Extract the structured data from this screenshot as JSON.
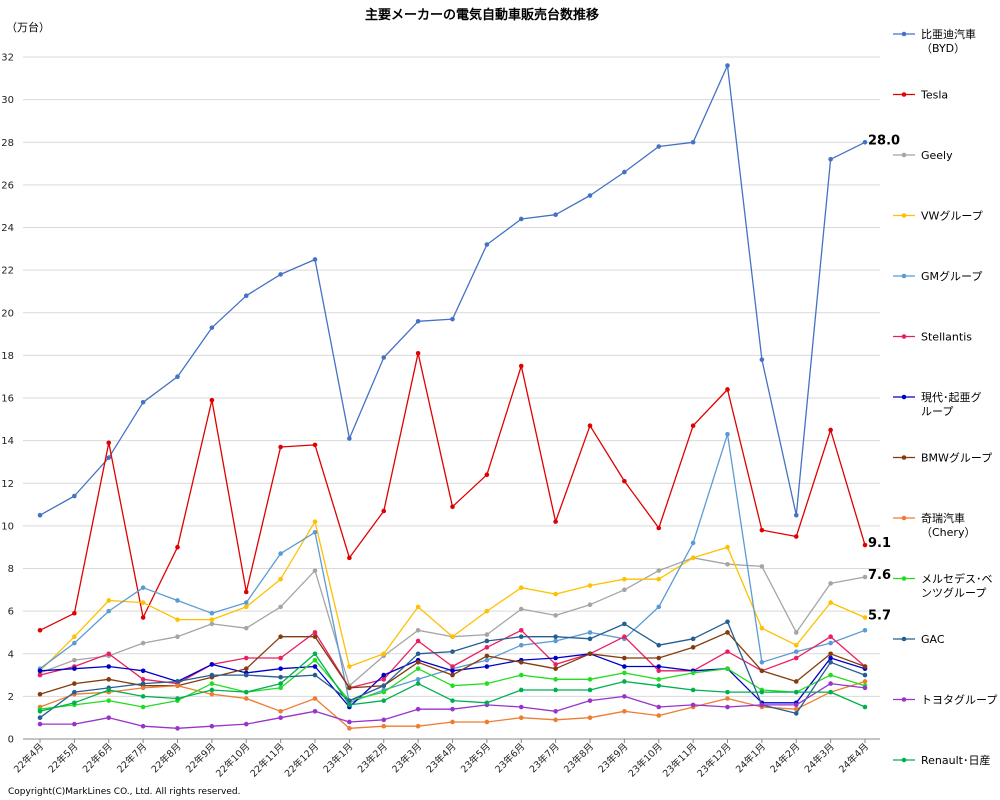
{
  "chart_data": {
    "type": "line",
    "title": "主要メーカーの電気自動車販売台数推移",
    "unit": "（万台）",
    "ylim": [
      0,
      32
    ],
    "yticks": [
      0,
      2,
      4,
      6,
      8,
      10,
      12,
      14,
      16,
      18,
      20,
      22,
      24,
      26,
      28,
      30,
      32
    ],
    "grid": true,
    "legend_position": "right",
    "categories": [
      "22年4月",
      "22年5月",
      "22年6月",
      "22年7月",
      "22年8月",
      "22年9月",
      "22年10月",
      "22年11月",
      "22年12月",
      "23年1月",
      "23年2月",
      "23年3月",
      "23年4月",
      "23年5月",
      "23年6月",
      "23年7月",
      "23年8月",
      "23年9月",
      "23年10月",
      "23年11月",
      "23年12月",
      "24年1月",
      "24年2月",
      "24年3月",
      "24年4月"
    ],
    "series": [
      {
        "name": "比亜迪汽車（BYD）",
        "legend_lines": [
          "比亜迪汽車",
          "（BYD）"
        ],
        "color": "#4472c4",
        "values": [
          10.5,
          11.4,
          13.2,
          15.8,
          17.0,
          19.3,
          20.8,
          21.8,
          22.5,
          14.1,
          17.9,
          19.6,
          19.7,
          23.2,
          24.4,
          24.6,
          25.5,
          26.6,
          27.8,
          28.0,
          31.6,
          17.8,
          10.5,
          27.2,
          28.0
        ]
      },
      {
        "name": "Tesla",
        "legend_lines": [
          "Tesla"
        ],
        "color": "#e00000",
        "values": [
          5.1,
          5.9,
          13.9,
          5.7,
          9.0,
          15.9,
          6.9,
          13.7,
          13.8,
          8.5,
          10.7,
          18.1,
          10.9,
          12.4,
          17.5,
          10.2,
          14.7,
          12.1,
          9.9,
          14.7,
          16.4,
          9.8,
          9.5,
          14.5,
          9.1
        ]
      },
      {
        "name": "Geely",
        "legend_lines": [
          "Geely"
        ],
        "color": "#a5a5a5",
        "values": [
          3.1,
          3.7,
          3.9,
          4.5,
          4.8,
          5.4,
          5.2,
          6.2,
          7.9,
          2.5,
          3.9,
          5.1,
          4.8,
          4.9,
          6.1,
          5.8,
          6.3,
          7.0,
          7.9,
          8.5,
          8.2,
          8.1,
          5.0,
          7.3,
          7.6
        ]
      },
      {
        "name": "VWグループ",
        "legend_lines": [
          "VWグループ"
        ],
        "color": "#ffc000",
        "values": [
          3.2,
          4.8,
          6.5,
          6.4,
          5.6,
          5.6,
          6.2,
          7.5,
          10.2,
          3.4,
          4.0,
          6.2,
          4.8,
          6.0,
          7.1,
          6.8,
          7.2,
          7.5,
          7.5,
          8.5,
          9.0,
          5.2,
          4.4,
          6.4,
          5.7
        ]
      },
      {
        "name": "GMグループ",
        "legend_lines": [
          "GMグループ"
        ],
        "color": "#5b9bd5",
        "values": [
          3.3,
          4.5,
          6.0,
          7.1,
          6.5,
          5.9,
          6.4,
          8.7,
          9.7,
          1.7,
          2.3,
          2.8,
          3.3,
          3.7,
          4.4,
          4.6,
          5.0,
          4.7,
          6.2,
          9.2,
          14.3,
          3.6,
          4.1,
          4.5,
          5.1
        ]
      },
      {
        "name": "Stellantis",
        "legend_lines": [
          "Stellantis"
        ],
        "color": "#e91e63",
        "values": [
          3.0,
          3.4,
          4.0,
          2.8,
          2.6,
          3.5,
          3.8,
          3.8,
          5.0,
          2.4,
          2.8,
          4.6,
          3.4,
          4.3,
          5.1,
          3.5,
          4.0,
          4.8,
          3.2,
          3.2,
          4.1,
          3.2,
          3.8,
          4.8,
          3.4
        ]
      },
      {
        "name": "現代･起亜グループ",
        "legend_lines": [
          "現代･起亜グ",
          "ループ"
        ],
        "color": "#0000cc",
        "values": [
          3.2,
          3.3,
          3.4,
          3.2,
          2.7,
          3.5,
          3.1,
          3.3,
          3.4,
          1.5,
          3.0,
          3.7,
          3.2,
          3.4,
          3.7,
          3.8,
          4.0,
          3.4,
          3.4,
          3.2,
          3.3,
          1.7,
          1.7,
          3.8,
          3.3
        ]
      },
      {
        "name": "BMWグループ",
        "legend_lines": [
          "BMWグループ"
        ],
        "color": "#843c0c",
        "values": [
          2.1,
          2.6,
          2.8,
          2.5,
          2.5,
          2.9,
          3.3,
          4.8,
          4.8,
          2.4,
          2.5,
          3.6,
          3.0,
          3.9,
          3.6,
          3.3,
          4.0,
          3.8,
          3.8,
          4.3,
          5.0,
          3.2,
          2.7,
          4.0,
          3.4
        ]
      },
      {
        "name": "奇瑞汽車（Chery）",
        "legend_lines": [
          "奇瑞汽車",
          "（Chery）"
        ],
        "color": "#ed7d31",
        "values": [
          1.5,
          2.1,
          2.2,
          2.4,
          2.5,
          2.1,
          1.9,
          1.3,
          1.9,
          0.5,
          0.6,
          0.6,
          0.8,
          0.8,
          1.0,
          0.9,
          1.0,
          1.3,
          1.1,
          1.5,
          1.9,
          1.5,
          1.4,
          2.2,
          2.7
        ]
      },
      {
        "name": "メルセデス･ベンツグループ",
        "legend_lines": [
          "メルセデス･ベ",
          "ンツグループ"
        ],
        "color": "#22dd22",
        "values": [
          1.4,
          1.6,
          1.8,
          1.5,
          1.8,
          2.6,
          2.2,
          2.4,
          3.7,
          1.8,
          2.2,
          3.3,
          2.5,
          2.6,
          3.0,
          2.8,
          2.8,
          3.1,
          2.8,
          3.1,
          3.3,
          2.3,
          2.2,
          3.0,
          2.5
        ]
      },
      {
        "name": "GAC",
        "legend_lines": [
          "GAC"
        ],
        "color": "#255e91",
        "values": [
          1.0,
          2.2,
          2.4,
          2.6,
          2.7,
          3.0,
          3.0,
          2.9,
          3.0,
          1.8,
          2.5,
          4.0,
          4.1,
          4.6,
          4.8,
          4.8,
          4.7,
          5.4,
          4.4,
          4.7,
          5.5,
          1.6,
          1.2,
          3.6,
          3.0
        ]
      },
      {
        "name": "トヨタグループ",
        "legend_lines": [
          "トヨタグループ"
        ],
        "color": "#9933cc",
        "values": [
          0.7,
          0.7,
          1.0,
          0.6,
          0.5,
          0.6,
          0.7,
          1.0,
          1.3,
          0.8,
          0.9,
          1.4,
          1.4,
          1.6,
          1.5,
          1.3,
          1.8,
          2.0,
          1.5,
          1.6,
          1.5,
          1.6,
          1.6,
          2.6,
          2.4
        ]
      },
      {
        "name": "Renault･日産",
        "legend_lines": [
          "Renault･日産"
        ],
        "color": "#00b050",
        "values": [
          1.3,
          1.7,
          2.3,
          2.0,
          1.9,
          2.3,
          2.2,
          2.6,
          4.0,
          1.6,
          1.8,
          2.6,
          1.8,
          1.7,
          2.3,
          2.3,
          2.3,
          2.7,
          2.5,
          2.3,
          2.2,
          2.2,
          2.2,
          2.2,
          1.5
        ]
      }
    ],
    "annotations": [
      {
        "text": "28.0",
        "series": "比亜迪汽車（BYD）"
      },
      {
        "text": "9.1",
        "series": "Tesla"
      },
      {
        "text": "7.6",
        "series": "Geely"
      },
      {
        "text": "5.7",
        "series": "VWグループ"
      }
    ],
    "copyright": "Copyright(C)MarkLines CO., Ltd. All rights reserved."
  }
}
